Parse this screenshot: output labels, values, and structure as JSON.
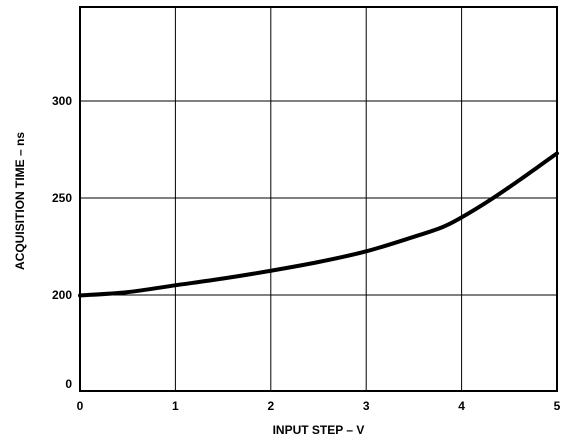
{
  "chart_data": {
    "type": "line",
    "title": "",
    "xlabel": "INPUT STEP – V",
    "ylabel": "ACQUISITION TIME – ns",
    "xlim": [
      0,
      5
    ],
    "ylim": [
      0,
      350
    ],
    "y_axis_break": "0 to 200",
    "x_ticks": [
      "0",
      "1",
      "2",
      "3",
      "4",
      "5"
    ],
    "y_ticks": [
      "0",
      "200",
      "250",
      "300"
    ],
    "grid": true,
    "legend": "none",
    "line_color": "#000000",
    "series": [
      {
        "x": [
          0,
          0.5,
          1.0,
          1.5,
          2.0,
          2.5,
          3.0,
          3.5,
          3.8,
          4.0,
          4.3,
          4.6,
          4.8,
          5.0
        ],
        "values": [
          199,
          201.5,
          205,
          208.5,
          212.5,
          217,
          222.5,
          230,
          235,
          240,
          249,
          259,
          266,
          273
        ]
      }
    ]
  }
}
